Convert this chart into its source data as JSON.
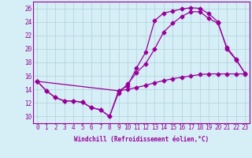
{
  "background_color": "#d6eef5",
  "grid_color": "#b0d0dc",
  "line_color": "#990099",
  "marker": "D",
  "markersize": 2.5,
  "linewidth": 0.9,
  "xlabel": "Windchill (Refroidissement éolien,°C)",
  "xlabel_fontsize": 5.5,
  "tick_fontsize": 5.5,
  "xlim": [
    -0.5,
    23.5
  ],
  "ylim": [
    9.0,
    27.0
  ],
  "yticks": [
    10,
    12,
    14,
    16,
    18,
    20,
    22,
    24,
    26
  ],
  "xticks": [
    0,
    1,
    2,
    3,
    4,
    5,
    6,
    7,
    8,
    9,
    10,
    11,
    12,
    13,
    14,
    15,
    16,
    17,
    18,
    19,
    20,
    21,
    22,
    23
  ],
  "series1_x": [
    0,
    1,
    2,
    3,
    4,
    5,
    6,
    7,
    8,
    9,
    10,
    11,
    12,
    13,
    14,
    15,
    16,
    17,
    18,
    19,
    20,
    21,
    22,
    23
  ],
  "series1_y": [
    15.2,
    13.8,
    12.8,
    12.3,
    12.3,
    12.1,
    11.3,
    11.0,
    10.0,
    13.8,
    14.5,
    17.2,
    19.5,
    24.2,
    25.3,
    25.6,
    25.9,
    26.1,
    26.0,
    25.2,
    24.0,
    20.0,
    18.4,
    16.4
  ],
  "series2_x": [
    0,
    1,
    2,
    3,
    4,
    5,
    6,
    7,
    8,
    9,
    10,
    11,
    12,
    13,
    14,
    15,
    16,
    17,
    18,
    19,
    20,
    21,
    22,
    23
  ],
  "series2_y": [
    15.2,
    13.8,
    12.8,
    12.3,
    12.3,
    12.1,
    11.3,
    11.0,
    10.0,
    13.5,
    14.8,
    16.5,
    17.8,
    20.0,
    22.5,
    23.8,
    24.8,
    25.5,
    25.5,
    24.5,
    23.8,
    20.2,
    18.5,
    16.4
  ],
  "series3_x": [
    0,
    9,
    10,
    11,
    12,
    13,
    14,
    15,
    16,
    17,
    18,
    19,
    20,
    21,
    22,
    23
  ],
  "series3_y": [
    15.2,
    13.8,
    14.0,
    14.3,
    14.6,
    15.0,
    15.3,
    15.6,
    15.8,
    16.0,
    16.2,
    16.3,
    16.3,
    16.3,
    16.3,
    16.3
  ]
}
